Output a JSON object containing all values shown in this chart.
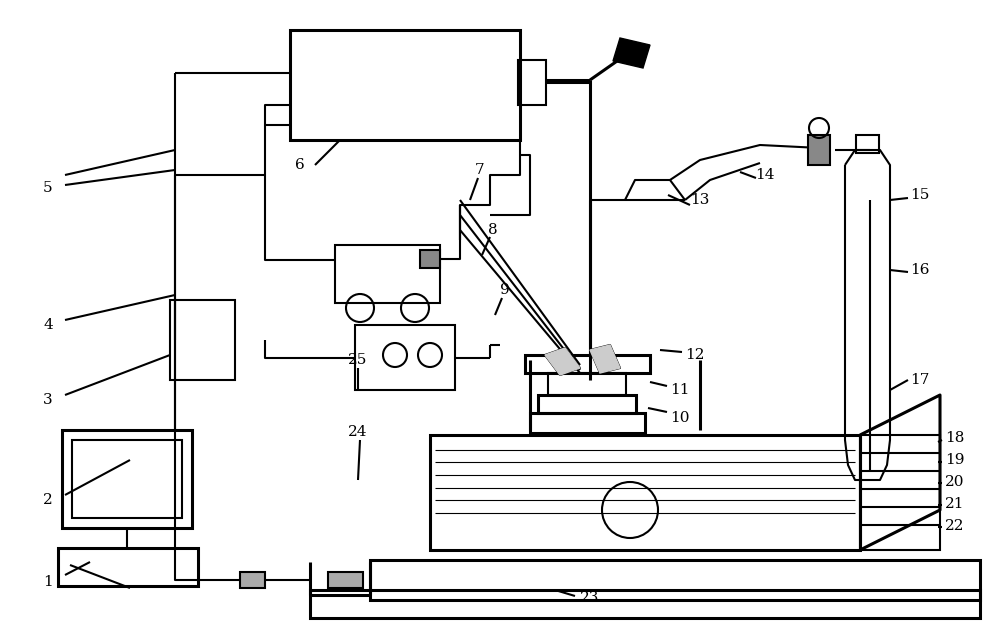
{
  "bg_color": "#ffffff",
  "lc": "#000000",
  "lw": 1.5,
  "tlw": 2.2
}
